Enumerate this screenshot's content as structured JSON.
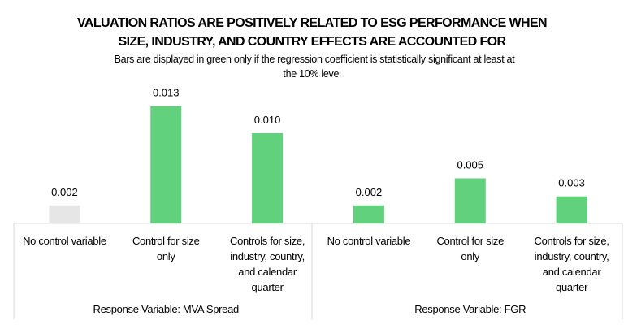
{
  "chart_data": {
    "type": "bar",
    "title": "VALUATION RATIOS ARE POSITIVELY RELATED TO ESG PERFORMANCE WHEN SIZE, INDUSTRY, AND COUNTRY EFFECTS ARE ACCOUNTED FOR",
    "title_lines": [
      "VALUATION RATIOS ARE POSITIVELY RELATED TO ESG PERFORMANCE WHEN",
      "SIZE, INDUSTRY, AND COUNTRY EFFECTS ARE ACCOUNTED FOR"
    ],
    "subtitle": "Bars are displayed in green only if the regression coefficient is statistically significant at least at the 10% level",
    "subtitle_lines": [
      "Bars are displayed in green only if the regression coefficient is statistically significant at least at",
      "the 10% level"
    ],
    "xlabel": "",
    "ylabel": "",
    "ylim": [
      0,
      0.014
    ],
    "grid": false,
    "legend": "none",
    "colors": {
      "significant": "#62d17e",
      "not_significant": "#e6e6e6",
      "axis": "#d9d9d9"
    },
    "groups": [
      {
        "name": "Response Variable: MVA Spread",
        "bars": [
          {
            "category": [
              "No control variable"
            ],
            "value": 0.002,
            "label": "0.002",
            "significant": false
          },
          {
            "category": [
              "Control for size",
              "only"
            ],
            "value": 0.013,
            "label": "0.013",
            "significant": true
          },
          {
            "category": [
              "Controls for size,",
              "industry, country,",
              "and calendar",
              "quarter"
            ],
            "value": 0.01,
            "label": "0.010",
            "significant": true
          }
        ]
      },
      {
        "name": "Response Variable: FGR",
        "bars": [
          {
            "category": [
              "No control variable"
            ],
            "value": 0.002,
            "label": "0.002",
            "significant": true
          },
          {
            "category": [
              "Control for size",
              "only"
            ],
            "value": 0.005,
            "label": "0.005",
            "significant": true
          },
          {
            "category": [
              "Controls for size,",
              "industry, country,",
              "and calendar",
              "quarter"
            ],
            "value": 0.003,
            "label": "0.003",
            "significant": true
          }
        ]
      }
    ]
  }
}
